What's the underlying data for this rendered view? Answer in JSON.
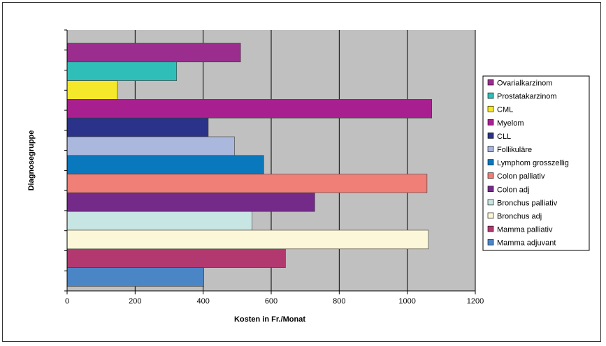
{
  "chart_data": {
    "type": "bar",
    "orientation": "horizontal",
    "title": "",
    "xlabel": "Kosten in Fr./Monat",
    "ylabel": "Diagnosegruppe",
    "xlim": [
      0,
      1200
    ],
    "xticks": [
      0,
      200,
      400,
      600,
      800,
      1000,
      1200
    ],
    "grid": true,
    "plot_background": "#c0c0c0",
    "legend_position": "right",
    "categories": [
      "Ovarialkarzinom",
      "Prostatakarzinom",
      "CML",
      "Myelom",
      "CLL",
      "Follikuläre",
      "Lymphom grosszellig",
      "Colon palliativ",
      "Colon adj",
      "Bronchus palliativ",
      "Bronchus adj",
      "Mamma palliativ",
      "Mamma adjuvant"
    ],
    "values": [
      510,
      322,
      148,
      1072,
      415,
      492,
      578,
      1058,
      728,
      544,
      1062,
      642,
      402
    ],
    "colors": [
      "#9b2d8f",
      "#2fbfb8",
      "#f5e82a",
      "#a8208f",
      "#2b3289",
      "#aab8de",
      "#0a78bd",
      "#f07f78",
      "#742a89",
      "#c7e5e2",
      "#fcf7d8",
      "#b23970",
      "#4a85c6"
    ]
  }
}
